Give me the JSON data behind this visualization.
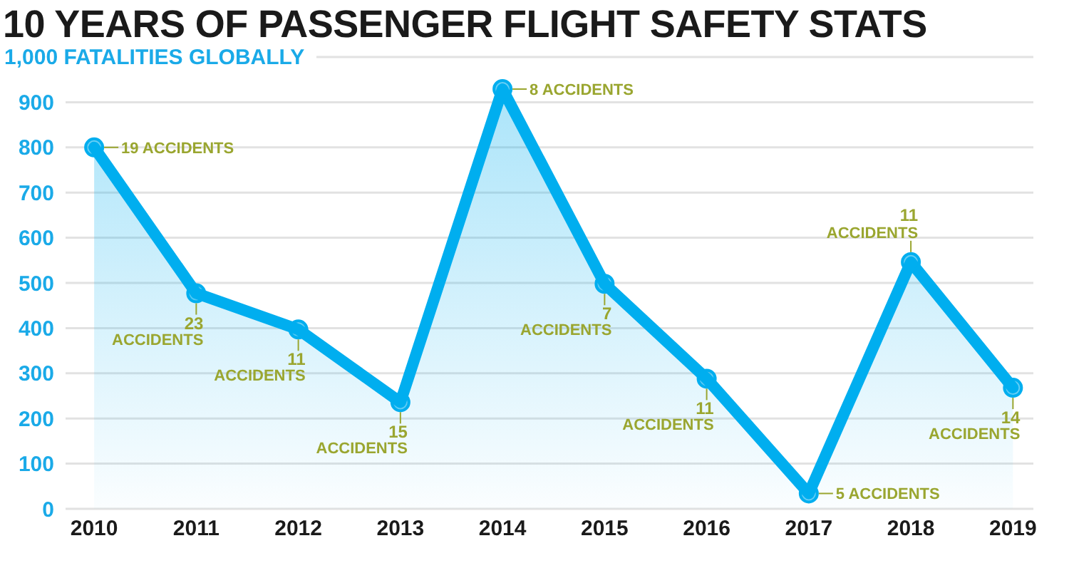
{
  "chart_data": {
    "type": "area",
    "title": "10 YEARS OF PASSENGER FLIGHT SAFETY STATS",
    "ylabel": "1,000 FATALITIES GLOBALLY",
    "categories": [
      "2010",
      "2011",
      "2012",
      "2013",
      "2014",
      "2015",
      "2016",
      "2017",
      "2018",
      "2019"
    ],
    "series": [
      {
        "color": "#00aeef",
        "values": [
          800,
          477,
          397,
          236,
          929,
          498,
          288,
          34,
          546,
          268
        ]
      }
    ],
    "ylim": [
      0,
      1000
    ],
    "yticks": [
      0,
      100,
      200,
      300,
      400,
      500,
      600,
      700,
      800,
      900,
      {
        "value": 1000,
        "label": null
      }
    ],
    "grid": "y",
    "marker": "circle",
    "line_style": "solid",
    "annotations": [
      {
        "text": "19 ACCIDENTS",
        "x": "2010",
        "y": 800
      },
      {
        "text": "23 ACCIDENTS",
        "x": "2011",
        "y": 477
      },
      {
        "text": "11 ACCIDENTS",
        "x": "2012",
        "y": 397
      },
      {
        "text": "15 ACCIDENTS",
        "x": "2013",
        "y": 236
      },
      {
        "text": "8 ACCIDENTS",
        "x": "2014",
        "y": 929
      },
      {
        "text": "7 ACCIDENTS",
        "x": "2015",
        "y": 498
      },
      {
        "text": "11 ACCIDENTS",
        "x": "2016",
        "y": 288
      },
      {
        "text": "5 ACCIDENTS",
        "x": "2017",
        "y": 34
      },
      {
        "text": "11 ACCIDENTS",
        "x": "2018",
        "y": 546
      },
      {
        "text": "14 ACCIDENTS",
        "x": "2019",
        "y": 268
      }
    ]
  }
}
